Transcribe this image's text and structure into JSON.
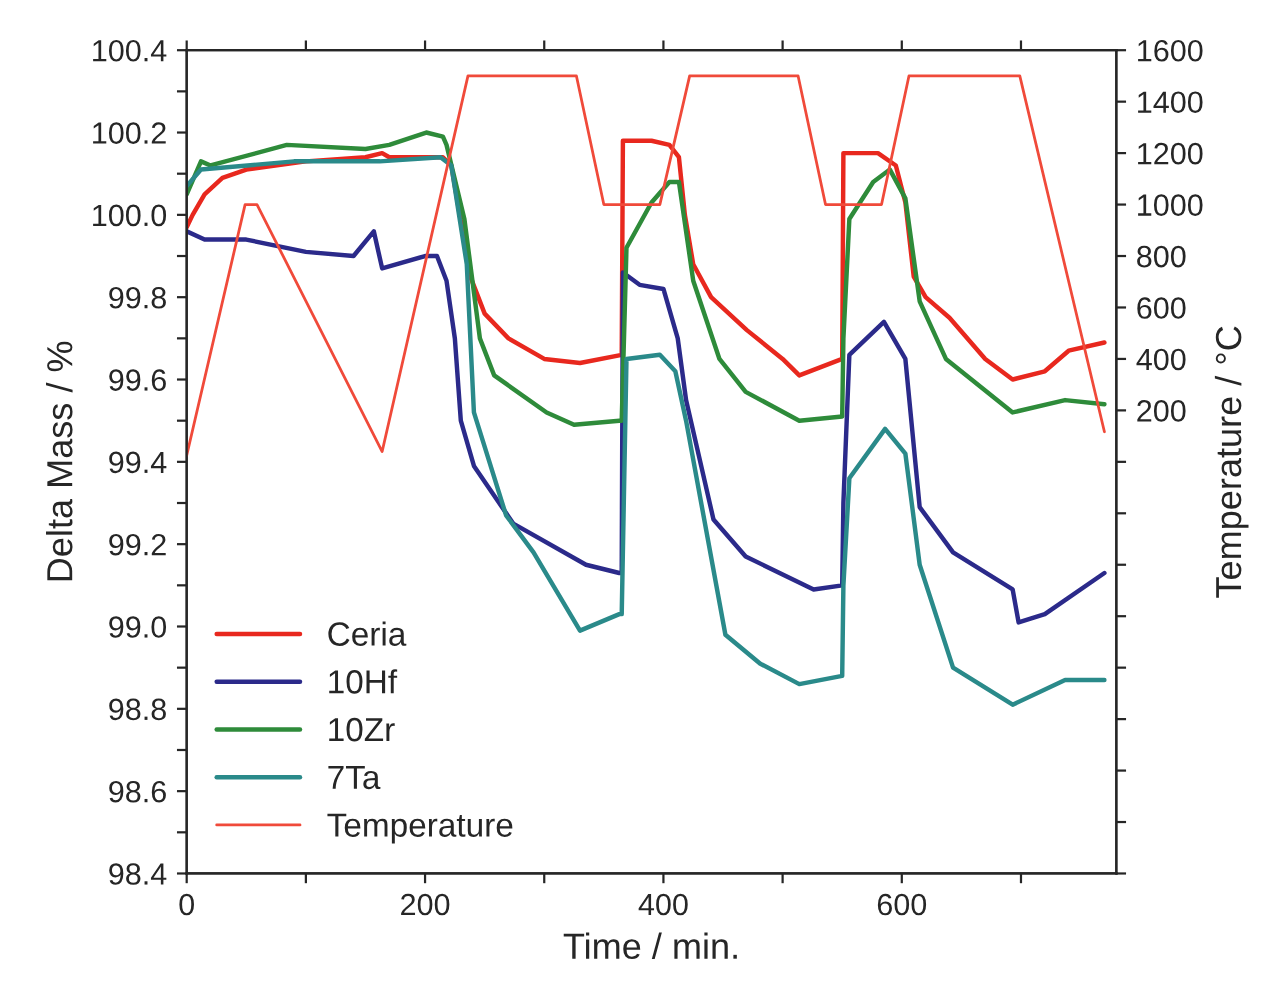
{
  "chart_data": {
    "type": "line",
    "xlabel": "Time / min.",
    "ylabel": "Delta Mass / %",
    "y2label": "Temperature / °C",
    "xlim": [
      0,
      780
    ],
    "xticks": [
      0,
      {
        "value": 100,
        "label": null
      },
      200,
      {
        "value": 300,
        "label": null
      },
      400,
      {
        "value": 500,
        "label": null
      },
      600,
      {
        "value": 700,
        "label": null
      }
    ],
    "ylim": [
      98.4,
      100.4
    ],
    "yticks": [
      98.4,
      {
        "value": 98.5,
        "label": null
      },
      98.6,
      {
        "value": 98.7,
        "label": null
      },
      98.8,
      {
        "value": 98.9,
        "label": null
      },
      {
        "value": 99.0,
        "label": "99.0"
      },
      {
        "value": 99.1,
        "label": null
      },
      99.2,
      {
        "value": 99.3,
        "label": null
      },
      99.4,
      {
        "value": 99.5,
        "label": null
      },
      99.6,
      {
        "value": 99.7,
        "label": null
      },
      99.8,
      {
        "value": 99.9,
        "label": null
      },
      {
        "value": 100.0,
        "label": "100.0"
      },
      {
        "value": 100.1,
        "label": null
      },
      100.2,
      {
        "value": 100.3,
        "label": null
      },
      100.4
    ],
    "y2lim": [
      -1600,
      1600
    ],
    "y2ticks": [
      {
        "value": -1600,
        "label": null
      },
      {
        "value": -1400,
        "label": null
      },
      {
        "value": -1200,
        "label": null
      },
      {
        "value": -1000,
        "label": null
      },
      {
        "value": -800,
        "label": null
      },
      {
        "value": -600,
        "label": null
      },
      {
        "value": -400,
        "label": null
      },
      {
        "value": -200,
        "label": null
      },
      {
        "value": 0,
        "label": null
      },
      200,
      400,
      600,
      800,
      1000,
      1200,
      1400,
      1600
    ],
    "grid": false,
    "legend": "bottom left",
    "marker": "none",
    "line_style": "solid",
    "series": [
      {
        "name": "Ceria",
        "color": "#e8281e",
        "x": [
          0,
          5,
          15,
          30,
          50,
          100,
          150,
          164,
          170,
          215,
          222,
          238,
          250,
          270,
          300,
          330,
          365,
          366,
          390,
          405,
          413,
          418,
          425,
          440,
          470,
          500,
          514,
          550,
          551,
          580,
          595,
          603,
          610,
          620,
          640,
          670,
          693,
          720,
          740,
          770
        ],
        "values": [
          99.97,
          100.0,
          100.05,
          100.09,
          100.11,
          100.13,
          100.14,
          100.15,
          100.14,
          100.14,
          100.12,
          99.85,
          99.76,
          99.7,
          99.65,
          99.64,
          99.66,
          100.18,
          100.18,
          100.17,
          100.14,
          100.0,
          99.88,
          99.8,
          99.72,
          99.65,
          99.61,
          99.65,
          100.15,
          100.15,
          100.12,
          100.03,
          99.85,
          99.8,
          99.75,
          99.65,
          99.6,
          99.62,
          99.67,
          99.69
        ]
      },
      {
        "name": "10Hf",
        "color": "#2b2a8a",
        "x": [
          0,
          15,
          50,
          100,
          140,
          157,
          164,
          200,
          210,
          218,
          225,
          230,
          241,
          274,
          335,
          363,
          365,
          366,
          380,
          400,
          412,
          419,
          442,
          469,
          526,
          550,
          551,
          556,
          585,
          603,
          615,
          643,
          693,
          698,
          720,
          770
        ],
        "values": [
          99.96,
          99.94,
          99.94,
          99.91,
          99.9,
          99.96,
          99.87,
          99.9,
          99.9,
          99.84,
          99.7,
          99.5,
          99.39,
          99.25,
          99.15,
          99.13,
          99.13,
          99.86,
          99.83,
          99.82,
          99.7,
          99.55,
          99.26,
          99.17,
          99.09,
          99.1,
          99.3,
          99.66,
          99.74,
          99.65,
          99.29,
          99.18,
          99.09,
          99.01,
          99.03,
          99.13
        ]
      },
      {
        "name": "10Zr",
        "color": "#2e8b3a",
        "x": [
          0,
          12,
          20,
          84,
          150,
          170,
          201,
          215,
          218,
          233,
          246,
          258,
          302,
          325,
          363,
          365,
          369,
          390,
          405,
          413,
          425,
          447,
          469,
          514,
          550,
          551,
          556,
          576,
          590,
          603,
          615,
          637,
          693,
          737,
          770
        ],
        "values": [
          100.05,
          100.13,
          100.12,
          100.17,
          100.16,
          100.17,
          100.2,
          100.19,
          100.17,
          99.99,
          99.7,
          99.61,
          99.52,
          99.49,
          99.5,
          99.5,
          99.92,
          100.03,
          100.08,
          100.08,
          99.84,
          99.65,
          99.57,
          99.5,
          99.51,
          99.7,
          99.99,
          100.08,
          100.11,
          100.04,
          99.79,
          99.65,
          99.52,
          99.55,
          99.54
        ]
      },
      {
        "name": "7Ta",
        "color": "#2a8a8a",
        "x": [
          0,
          12,
          90,
          162,
          213,
          222,
          235,
          241,
          268,
          291,
          330,
          363,
          365,
          369,
          397,
          410,
          419,
          452,
          481,
          514,
          550,
          551,
          556,
          586,
          603,
          615,
          643,
          693,
          737,
          770
        ],
        "values": [
          100.07,
          100.11,
          100.13,
          100.13,
          100.14,
          100.12,
          99.88,
          99.52,
          99.27,
          99.18,
          98.99,
          99.03,
          99.03,
          99.65,
          99.66,
          99.62,
          99.5,
          98.98,
          98.91,
          98.86,
          98.88,
          99.1,
          99.36,
          99.48,
          99.42,
          99.15,
          98.9,
          98.81,
          98.87,
          98.87
        ]
      },
      {
        "name": "Temperature",
        "color": "#f04a3a",
        "axis": "y2",
        "x": [
          0,
          49,
          59,
          164,
          236,
          327,
          350,
          397,
          422,
          513,
          536,
          583,
          606,
          699,
          770
        ],
        "values": [
          25,
          1000,
          1000,
          40,
          1500,
          1500,
          1000,
          1000,
          1500,
          1500,
          1000,
          1000,
          1500,
          1500,
          117
        ]
      }
    ]
  }
}
